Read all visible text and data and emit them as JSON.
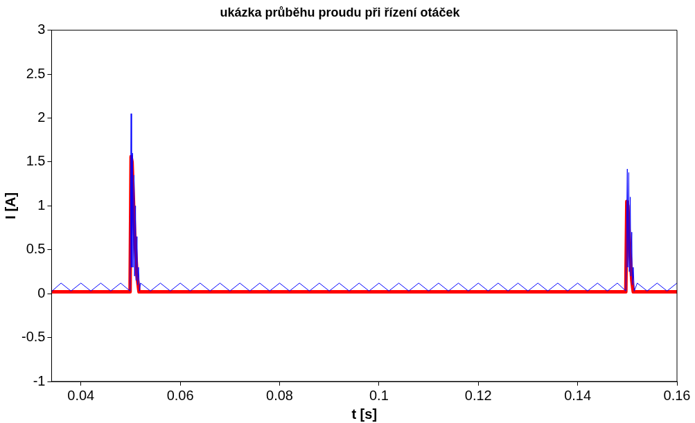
{
  "chart_data": {
    "type": "line",
    "title": "ukázka průběhu proudu při řízení otáček",
    "xlabel": "t [s]",
    "ylabel": "I [A]",
    "xlim": [
      0.0341,
      0.16
    ],
    "ylim": [
      -1,
      3
    ],
    "xticks": [
      0.04,
      0.06,
      0.08,
      0.1,
      0.12,
      0.14,
      0.16
    ],
    "yticks": [
      -1,
      -0.5,
      0,
      0.5,
      1,
      1.5,
      2,
      2.5,
      3
    ],
    "marker": "none",
    "line_style": "solid",
    "series": [
      {
        "color": "#0000ff",
        "x": [
          0.0342,
          0.036,
          0.038,
          0.04,
          0.042,
          0.044,
          0.046,
          0.048,
          0.0499,
          0.0501,
          0.0502,
          0.0504,
          0.0505,
          0.0507,
          0.0508,
          0.051,
          0.0511,
          0.0513,
          0.0514,
          0.0516,
          0.0518,
          0.052,
          0.054,
          0.056,
          0.058,
          0.06,
          0.062,
          0.064,
          0.066,
          0.068,
          0.07,
          0.072,
          0.074,
          0.076,
          0.078,
          0.08,
          0.082,
          0.084,
          0.086,
          0.088,
          0.09,
          0.092,
          0.094,
          0.096,
          0.098,
          0.1,
          0.102,
          0.104,
          0.106,
          0.108,
          0.11,
          0.112,
          0.114,
          0.116,
          0.118,
          0.12,
          0.122,
          0.124,
          0.126,
          0.128,
          0.13,
          0.132,
          0.134,
          0.136,
          0.138,
          0.14,
          0.142,
          0.144,
          0.146,
          0.148,
          0.1497,
          0.15,
          0.1501,
          0.1503,
          0.1504,
          0.1506,
          0.1507,
          0.1509,
          0.151,
          0.1512,
          0.1514,
          0.152,
          0.154,
          0.156,
          0.158,
          0.16
        ],
        "values": [
          0.03,
          0.12,
          0.03,
          0.12,
          0.03,
          0.12,
          0.03,
          0.12,
          0.03,
          2.05,
          0.3,
          1.6,
          0.3,
          1.35,
          0.2,
          1.0,
          0.15,
          0.65,
          0.1,
          0.3,
          0.03,
          0.12,
          0.03,
          0.12,
          0.03,
          0.12,
          0.03,
          0.12,
          0.03,
          0.12,
          0.03,
          0.12,
          0.03,
          0.12,
          0.03,
          0.12,
          0.03,
          0.12,
          0.03,
          0.12,
          0.03,
          0.12,
          0.03,
          0.12,
          0.03,
          0.12,
          0.03,
          0.12,
          0.03,
          0.12,
          0.03,
          0.12,
          0.03,
          0.12,
          0.03,
          0.12,
          0.03,
          0.12,
          0.03,
          0.12,
          0.03,
          0.12,
          0.03,
          0.12,
          0.03,
          0.12,
          0.03,
          0.12,
          0.03,
          0.12,
          0.03,
          1.42,
          0.3,
          1.38,
          0.25,
          1.1,
          0.2,
          0.7,
          0.1,
          0.3,
          0.03,
          0.12,
          0.03,
          0.12,
          0.03,
          0.12
        ]
      },
      {
        "color": "#ff0000",
        "x": [
          0.0342,
          0.0499,
          0.0501,
          0.0503,
          0.0508,
          0.0513,
          0.0517,
          0.1497,
          0.1499,
          0.1501,
          0.1505,
          0.1509,
          0.1512,
          0.16
        ],
        "values": [
          0.02,
          0.02,
          1.56,
          1.5,
          0.7,
          0.2,
          0.02,
          0.02,
          1.05,
          1.0,
          0.5,
          0.15,
          0.02,
          0.02
        ]
      }
    ]
  }
}
